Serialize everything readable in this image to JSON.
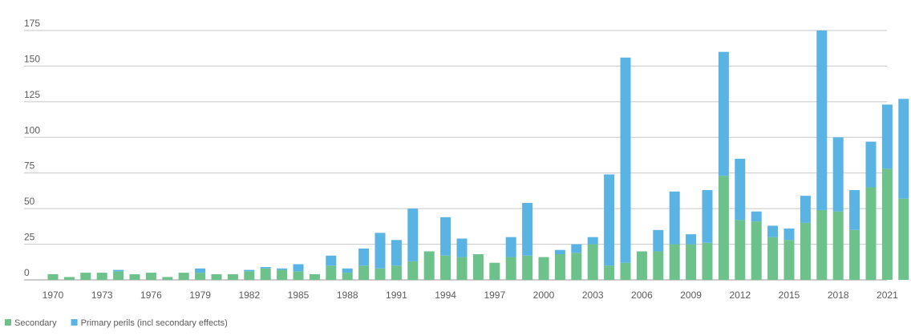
{
  "chart_data": {
    "type": "bar",
    "stacked": true,
    "title": "",
    "xlabel": "",
    "ylabel": "",
    "ylim": [
      0,
      175
    ],
    "yticks": [
      0,
      25,
      50,
      75,
      100,
      125,
      150,
      175
    ],
    "xtick_labels": [
      "1970",
      "1973",
      "1976",
      "1979",
      "1982",
      "1985",
      "1988",
      "1991",
      "1994",
      "1997",
      "2000",
      "2003",
      "2006",
      "2009",
      "2012",
      "2015",
      "2018",
      "2021"
    ],
    "categories": [
      "1970",
      "1971",
      "1972",
      "1973",
      "1974",
      "1975",
      "1976",
      "1977",
      "1978",
      "1979",
      "1980",
      "1981",
      "1982",
      "1983",
      "1984",
      "1985",
      "1986",
      "1987",
      "1988",
      "1989",
      "1990",
      "1991",
      "1992",
      "1993",
      "1994",
      "1995",
      "1996",
      "1997",
      "1998",
      "1999",
      "2000",
      "2001",
      "2002",
      "2003",
      "2004",
      "2005",
      "2006",
      "2007",
      "2008",
      "2009",
      "2010",
      "2011",
      "2012",
      "2013",
      "2014",
      "2015",
      "2016",
      "2017",
      "2018",
      "2019",
      "2020",
      "2021",
      "2022"
    ],
    "series": [
      {
        "name": "Secondary",
        "color": "#6cc28a",
        "values": [
          4,
          2,
          5,
          5,
          6,
          4,
          5,
          2,
          5,
          5,
          4,
          4,
          6,
          8,
          7,
          6,
          4,
          10,
          5,
          10,
          8,
          10,
          13,
          20,
          17,
          16,
          18,
          12,
          16,
          17,
          16,
          18,
          19,
          25,
          10,
          12,
          20,
          20,
          25,
          25,
          26,
          73,
          42,
          41,
          30,
          28,
          40,
          49,
          48,
          35,
          65,
          78,
          57
        ]
      },
      {
        "name": "Primary perils (incl secondary effects)",
        "color": "#5ab4e3",
        "values": [
          0,
          0,
          0,
          0,
          1,
          0,
          0,
          0,
          0,
          3,
          0,
          0,
          1,
          1,
          1,
          5,
          0,
          7,
          3,
          12,
          25,
          18,
          37,
          0,
          27,
          13,
          0,
          0,
          14,
          37,
          0,
          3,
          6,
          5,
          64,
          144,
          0,
          15,
          37,
          7,
          37,
          87,
          43,
          7,
          8,
          8,
          19,
          126,
          52,
          28,
          32,
          45,
          70
        ]
      }
    ],
    "legend": {
      "placement": "bottom-left",
      "items": [
        {
          "label": "Secondary",
          "color": "#6cc28a"
        },
        {
          "label": "Primary perils (incl secondary effects)",
          "color": "#5ab4e3"
        }
      ]
    },
    "grid": true
  }
}
